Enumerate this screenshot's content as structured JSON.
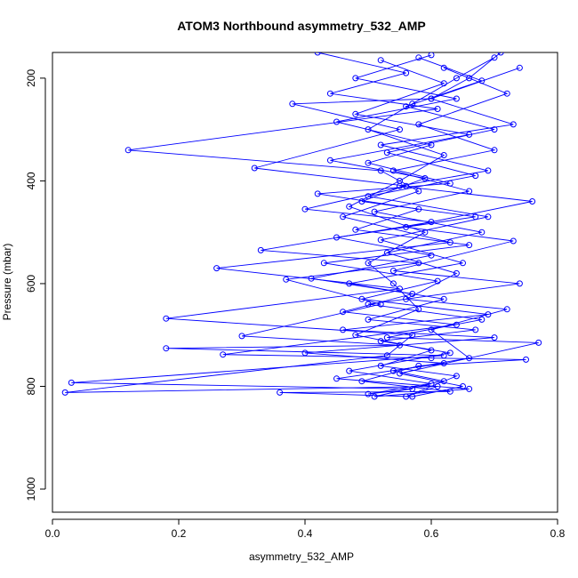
{
  "chart_data": {
    "type": "line",
    "title": "ATOM3 Northbound asymmetry_532_AMP",
    "xlabel": "asymmetry_532_AMP",
    "ylabel": "Pressure (mbar)",
    "xlim": [
      0,
      0.8
    ],
    "ylim": [
      1045,
      150
    ],
    "y_reversed": true,
    "grid": false,
    "x_ticks": [
      0.0,
      0.2,
      0.4,
      0.6,
      0.8
    ],
    "x_tick_labels": [
      "0.0",
      "0.2",
      "0.4",
      "0.6",
      "0.8"
    ],
    "y_ticks": [
      200,
      400,
      600,
      800,
      1000
    ],
    "y_tick_labels": [
      "200",
      "400",
      "600",
      "800",
      "1000"
    ],
    "series_color": "#0000ff",
    "series": [
      {
        "points": [
          [
            0.42,
            150
          ],
          [
            0.56,
            190
          ],
          [
            0.44,
            230
          ],
          [
            0.61,
            260
          ],
          [
            0.12,
            340
          ],
          [
            0.52,
            380
          ],
          [
            0.58,
            420
          ],
          [
            0.46,
            470
          ],
          [
            0.63,
            520
          ],
          [
            0.26,
            570
          ],
          [
            0.55,
            610
          ],
          [
            0.18,
            668
          ],
          [
            0.57,
            700
          ],
          [
            0.53,
            740
          ],
          [
            0.02,
            812
          ],
          [
            0.61,
            800
          ],
          [
            0.56,
            820
          ],
          [
            0.64,
            780
          ],
          [
            0.52,
            760
          ],
          [
            0.6,
            730
          ],
          [
            0.48,
            700
          ],
          [
            0.58,
            650
          ],
          [
            0.54,
            600
          ],
          [
            0.5,
            560
          ],
          [
            0.59,
            500
          ],
          [
            0.47,
            450
          ],
          [
            0.55,
            400
          ],
          [
            0.62,
            350
          ],
          [
            0.5,
            300
          ],
          [
            0.57,
            250
          ],
          [
            0.64,
            200
          ],
          [
            0.7,
            160
          ]
        ]
      },
      {
        "points": [
          [
            0.71,
            150
          ],
          [
            0.66,
            200
          ],
          [
            0.6,
            240
          ],
          [
            0.38,
            250
          ],
          [
            0.55,
            300
          ],
          [
            0.32,
            375
          ],
          [
            0.56,
            410
          ],
          [
            0.4,
            455
          ],
          [
            0.6,
            480
          ],
          [
            0.33,
            535
          ],
          [
            0.58,
            560
          ],
          [
            0.37,
            592
          ],
          [
            0.52,
            640
          ],
          [
            0.3,
            702
          ],
          [
            0.55,
            720
          ],
          [
            0.18,
            726
          ],
          [
            0.62,
            740
          ],
          [
            0.03,
            793
          ],
          [
            0.57,
            805
          ],
          [
            0.5,
            815
          ],
          [
            0.62,
            790
          ],
          [
            0.54,
            770
          ],
          [
            0.66,
            745
          ],
          [
            0.6,
            690
          ],
          [
            0.72,
            650
          ],
          [
            0.56,
            630
          ],
          [
            0.64,
            580
          ],
          [
            0.53,
            540
          ],
          [
            0.68,
            500
          ],
          [
            0.51,
            460
          ],
          [
            0.66,
            420
          ],
          [
            0.54,
            380
          ],
          [
            0.7,
            340
          ],
          [
            0.58,
            290
          ],
          [
            0.72,
            230
          ],
          [
            0.62,
            180
          ]
        ]
      },
      {
        "points": [
          [
            0.52,
            165
          ],
          [
            0.62,
            210
          ],
          [
            0.48,
            270
          ],
          [
            0.66,
            310
          ],
          [
            0.44,
            360
          ],
          [
            0.59,
            395
          ],
          [
            0.49,
            440
          ],
          [
            0.67,
            470
          ],
          [
            0.45,
            510
          ],
          [
            0.6,
            545
          ],
          [
            0.41,
            590
          ],
          [
            0.57,
            620
          ],
          [
            0.46,
            655
          ],
          [
            0.64,
            680
          ],
          [
            0.27,
            738
          ],
          [
            0.6,
            745
          ],
          [
            0.75,
            748
          ],
          [
            0.58,
            760
          ],
          [
            0.49,
            790
          ],
          [
            0.63,
            810
          ],
          [
            0.36,
            812
          ],
          [
            0.57,
            820
          ],
          [
            0.65,
            800
          ],
          [
            0.55,
            775
          ],
          [
            0.77,
            715
          ],
          [
            0.53,
            705
          ],
          [
            0.68,
            670
          ],
          [
            0.5,
            640
          ],
          [
            0.74,
            600
          ],
          [
            0.54,
            575
          ],
          [
            0.73,
            517
          ],
          [
            0.56,
            490
          ],
          [
            0.76,
            440
          ],
          [
            0.55,
            410
          ],
          [
            0.69,
            380
          ],
          [
            0.52,
            330
          ],
          [
            0.73,
            290
          ],
          [
            0.6,
            240
          ],
          [
            0.74,
            180
          ]
        ]
      },
      {
        "points": [
          [
            0.6,
            155
          ],
          [
            0.48,
            200
          ],
          [
            0.64,
            240
          ],
          [
            0.45,
            285
          ],
          [
            0.6,
            330
          ],
          [
            0.5,
            365
          ],
          [
            0.63,
            405
          ],
          [
            0.42,
            425
          ],
          [
            0.58,
            455
          ],
          [
            0.48,
            495
          ],
          [
            0.66,
            525
          ],
          [
            0.43,
            560
          ],
          [
            0.61,
            595
          ],
          [
            0.49,
            630
          ],
          [
            0.69,
            660
          ],
          [
            0.46,
            690
          ],
          [
            0.7,
            705
          ],
          [
            0.4,
            735
          ],
          [
            0.62,
            755
          ],
          [
            0.45,
            785
          ],
          [
            0.66,
            805
          ],
          [
            0.51,
            820
          ],
          [
            0.6,
            795
          ],
          [
            0.47,
            770
          ],
          [
            0.63,
            735
          ],
          [
            0.52,
            712
          ],
          [
            0.67,
            690
          ],
          [
            0.5,
            670
          ],
          [
            0.62,
            630
          ],
          [
            0.47,
            600
          ],
          [
            0.65,
            560
          ],
          [
            0.52,
            515
          ],
          [
            0.69,
            470
          ],
          [
            0.5,
            430
          ],
          [
            0.67,
            390
          ],
          [
            0.53,
            345
          ],
          [
            0.7,
            300
          ],
          [
            0.56,
            255
          ],
          [
            0.68,
            205
          ],
          [
            0.58,
            160
          ]
        ]
      }
    ]
  }
}
